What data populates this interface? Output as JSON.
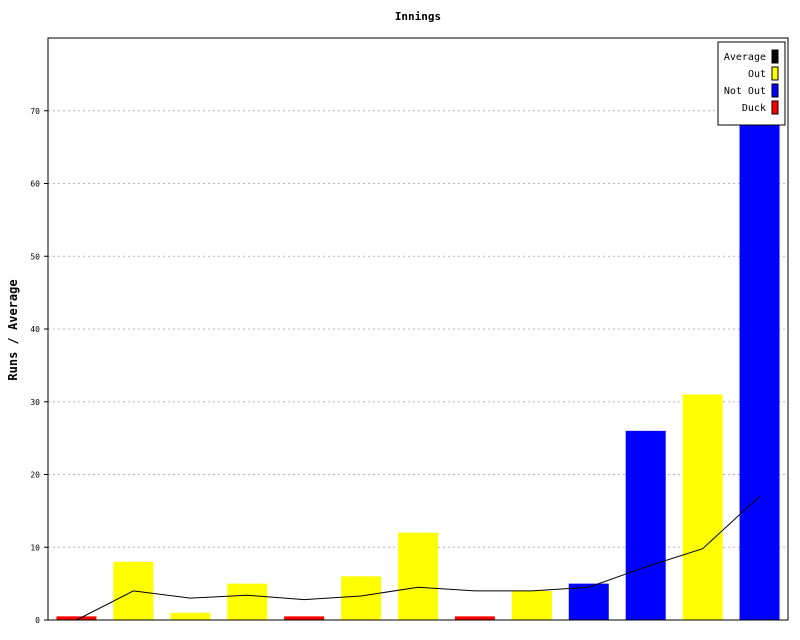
{
  "chart_data": {
    "type": "bar",
    "title": "Innings",
    "ylabel": "Runs / Average",
    "xlabel": "",
    "ylim": [
      0,
      80
    ],
    "yticks": [
      0,
      10,
      20,
      30,
      40,
      50,
      60,
      70
    ],
    "grid": "horizontal-dotted",
    "legend_position": "top-right",
    "legend": [
      {
        "name": "Average",
        "color": "#000000"
      },
      {
        "name": "Out",
        "color": "#ffff00"
      },
      {
        "name": "Not Out",
        "color": "#0000ff"
      },
      {
        "name": "Duck",
        "color": "#ff0000"
      }
    ],
    "bars": [
      {
        "value": 0.5,
        "status": "Duck"
      },
      {
        "value": 8,
        "status": "Out"
      },
      {
        "value": 1,
        "status": "Out"
      },
      {
        "value": 5,
        "status": "Out"
      },
      {
        "value": 0.5,
        "status": "Duck"
      },
      {
        "value": 6,
        "status": "Out"
      },
      {
        "value": 12,
        "status": "Out"
      },
      {
        "value": 0.5,
        "status": "Duck"
      },
      {
        "value": 4,
        "status": "Out"
      },
      {
        "value": 5,
        "status": "Not Out"
      },
      {
        "value": 26,
        "status": "Not Out"
      },
      {
        "value": 31,
        "status": "Out"
      },
      {
        "value": 70,
        "status": "Not Out"
      }
    ],
    "average": [
      0,
      4,
      3,
      3.4,
      2.8,
      3.3,
      4.5,
      4,
      4,
      4.5,
      7.3,
      9.8,
      17
    ]
  }
}
